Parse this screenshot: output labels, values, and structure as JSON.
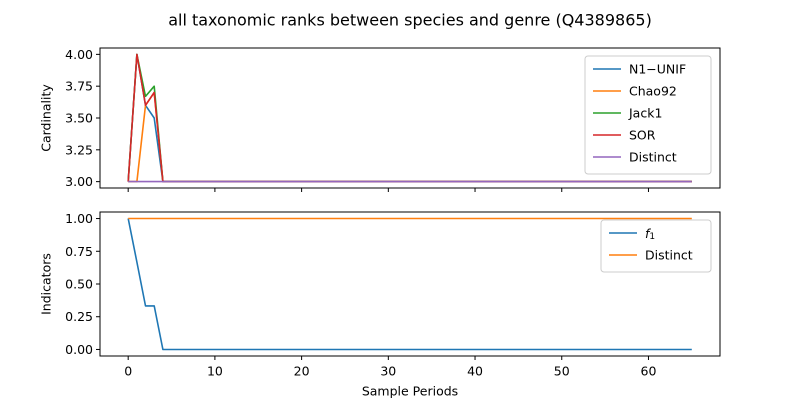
{
  "title": "all taxonomic ranks between species and genre (Q4389865)",
  "colors": {
    "blue": "#1f77b4",
    "orange": "#ff7f0e",
    "green": "#2ca02c",
    "red": "#d62728",
    "purple": "#9467bd"
  },
  "chart_data": [
    {
      "type": "line",
      "ylabel": "Cardinality",
      "xlabel": "",
      "xlim": [
        -3.25,
        68.25
      ],
      "ylim": [
        2.95,
        4.05
      ],
      "xticks": [
        0,
        10,
        20,
        30,
        40,
        50,
        60
      ],
      "xtick_labels_visible": false,
      "yticks": [
        3.0,
        3.25,
        3.5,
        3.75,
        4.0
      ],
      "ytick_labels": [
        "3.00",
        "3.25",
        "3.50",
        "3.75",
        "4.00"
      ],
      "grid": false,
      "legend_position": "upper right",
      "series": [
        {
          "name": "N1−UNIF",
          "color": "#1f77b4",
          "x": [
            0,
            1,
            2,
            3,
            4,
            65
          ],
          "y": [
            3.0,
            4.0,
            3.6,
            3.5,
            3.0,
            3.0
          ]
        },
        {
          "name": "Chao92",
          "color": "#ff7f0e",
          "x": [
            0,
            1,
            2,
            3,
            4,
            65
          ],
          "y": [
            3.0,
            3.0,
            3.6,
            3.7,
            3.0,
            3.0
          ]
        },
        {
          "name": "Jack1",
          "color": "#2ca02c",
          "x": [
            0,
            1,
            2,
            3,
            4,
            65
          ],
          "y": [
            3.0,
            4.0,
            3.67,
            3.75,
            3.0,
            3.0
          ]
        },
        {
          "name": "SOR",
          "color": "#d62728",
          "x": [
            0,
            1,
            2,
            3,
            4,
            65
          ],
          "y": [
            3.0,
            4.0,
            3.6,
            3.7,
            3.0,
            3.0
          ]
        },
        {
          "name": "Distinct",
          "color": "#9467bd",
          "x": [
            0,
            65
          ],
          "y": [
            3.0,
            3.0
          ]
        }
      ]
    },
    {
      "type": "line",
      "ylabel": "Indicators",
      "xlabel": "Sample Periods",
      "xlim": [
        -3.25,
        68.25
      ],
      "ylim": [
        -0.05,
        1.05
      ],
      "xticks": [
        0,
        10,
        20,
        30,
        40,
        50,
        60
      ],
      "xtick_labels": [
        "0",
        "10",
        "20",
        "30",
        "40",
        "50",
        "60"
      ],
      "xtick_labels_visible": true,
      "yticks": [
        0.0,
        0.25,
        0.5,
        0.75,
        1.0
      ],
      "ytick_labels": [
        "0.00",
        "0.25",
        "0.50",
        "0.75",
        "1.00"
      ],
      "grid": false,
      "legend_position": "upper right",
      "series": [
        {
          "name": "f1",
          "name_base": "f",
          "name_sub": "1",
          "color": "#1f77b4",
          "x": [
            0,
            1,
            2,
            3,
            4,
            65
          ],
          "y": [
            1.0,
            0.667,
            0.333,
            0.333,
            0.0,
            0.0
          ]
        },
        {
          "name": "Distinct",
          "color": "#ff7f0e",
          "x": [
            0,
            65
          ],
          "y": [
            1.0,
            1.0
          ]
        }
      ]
    }
  ]
}
